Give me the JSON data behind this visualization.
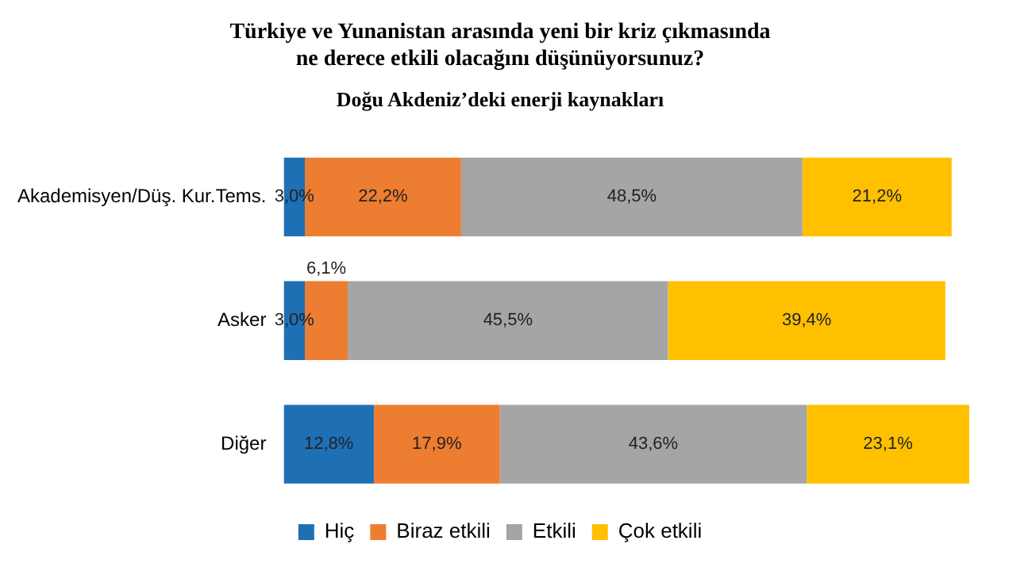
{
  "chart_data": {
    "type": "bar",
    "orientation": "horizontal",
    "stacked": true,
    "title": "Türkiye ve Yunanistan arasında yeni bir kriz çıkmasında\nne derece etkili olacağını düşünüyorsunuz?",
    "subtitle": "Doğu Akdeniz’deki enerji kaynakları",
    "categories": [
      "Akademisyen/Düş. Kur.Tems.",
      "Asker",
      "Diğer"
    ],
    "legend": "bottom",
    "grid": false,
    "tick_labels": "y",
    "series": [
      {
        "name": "Hiç",
        "color": "#1f6fb5",
        "values": [
          3.0,
          3.0,
          12.8
        ],
        "value_labels": [
          "3,0%",
          "3,0%",
          "12,8%"
        ]
      },
      {
        "name": "Biraz etkili",
        "color": "#ed7d31",
        "values": [
          22.2,
          6.1,
          17.9
        ],
        "value_labels": [
          "22,2%",
          "6,1%",
          "17,9%"
        ]
      },
      {
        "name": "Etkili",
        "color": "#a5a5a5",
        "values": [
          48.5,
          45.5,
          43.6
        ],
        "value_labels": [
          "48,5%",
          "45,5%",
          "43,6%"
        ]
      },
      {
        "name": "Çok etkili",
        "color": "#ffc000",
        "values": [
          21.2,
          39.4,
          23.1
        ],
        "value_labels": [
          "21,2%",
          "39,4%",
          "23,1%"
        ]
      }
    ]
  }
}
